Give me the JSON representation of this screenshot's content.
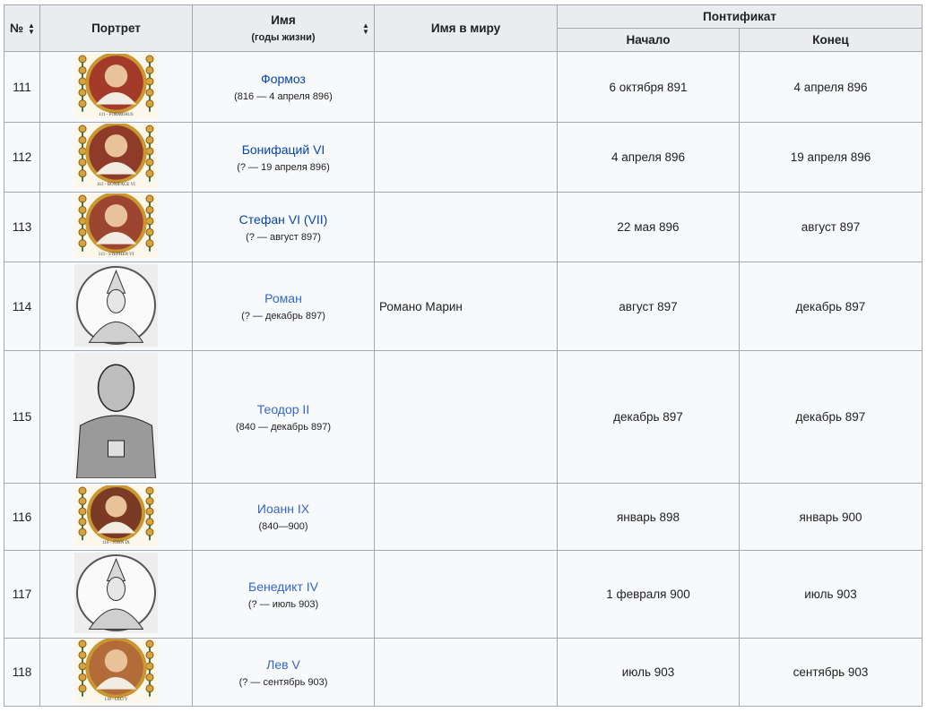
{
  "headers": {
    "num": "№",
    "portrait": "Портрет",
    "name": "Имя",
    "name_sub": "(годы жизни)",
    "secular": "Имя в миру",
    "pontificate": "Понтификат",
    "start": "Начало",
    "end": "Конец"
  },
  "rows": [
    {
      "num": "111",
      "name": "Формоз",
      "years": "(816 — 4 апреля 896)",
      "secular": "",
      "start": "6 октября 891",
      "end": "4 апреля 896",
      "caption": "111 - FORMOSUS"
    },
    {
      "num": "112",
      "name": "Бонифаций VI",
      "years": "(? — 19 апреля 896)",
      "secular": "",
      "start": "4 апреля 896",
      "end": "19 апреля 896",
      "caption": "112 - BONIFACE VI"
    },
    {
      "num": "113",
      "name": "Стефан VI (VII)",
      "years": "(? — август 897)",
      "secular": "",
      "start": "22 мая 896",
      "end": "август 897",
      "caption": "113 - STEPHEN VI"
    },
    {
      "num": "114",
      "name": "Роман",
      "years": "(? — декабрь 897)",
      "secular": "Романо Марин",
      "start": "август 897",
      "end": "декабрь 897",
      "caption": ""
    },
    {
      "num": "115",
      "name": "Теодор II",
      "years": "(840 — декабрь 897)",
      "secular": "",
      "start": "декабрь 897",
      "end": "декабрь 897",
      "caption": ""
    },
    {
      "num": "116",
      "name": "Иоанн IX",
      "years": "(840—900)",
      "secular": "",
      "start": "январь 898",
      "end": "январь 900",
      "caption": "116 - JOHN IX"
    },
    {
      "num": "117",
      "name": "Бенедикт IV",
      "years": "(? — июль 903)",
      "secular": "",
      "start": "1 февраля 900",
      "end": "июль 903",
      "caption": ""
    },
    {
      "num": "118",
      "name": "Лев V",
      "years": "(? — сентябрь 903)",
      "secular": "",
      "start": "июль 903",
      "end": "сентябрь 903",
      "caption": "118 - LEO V"
    }
  ]
}
